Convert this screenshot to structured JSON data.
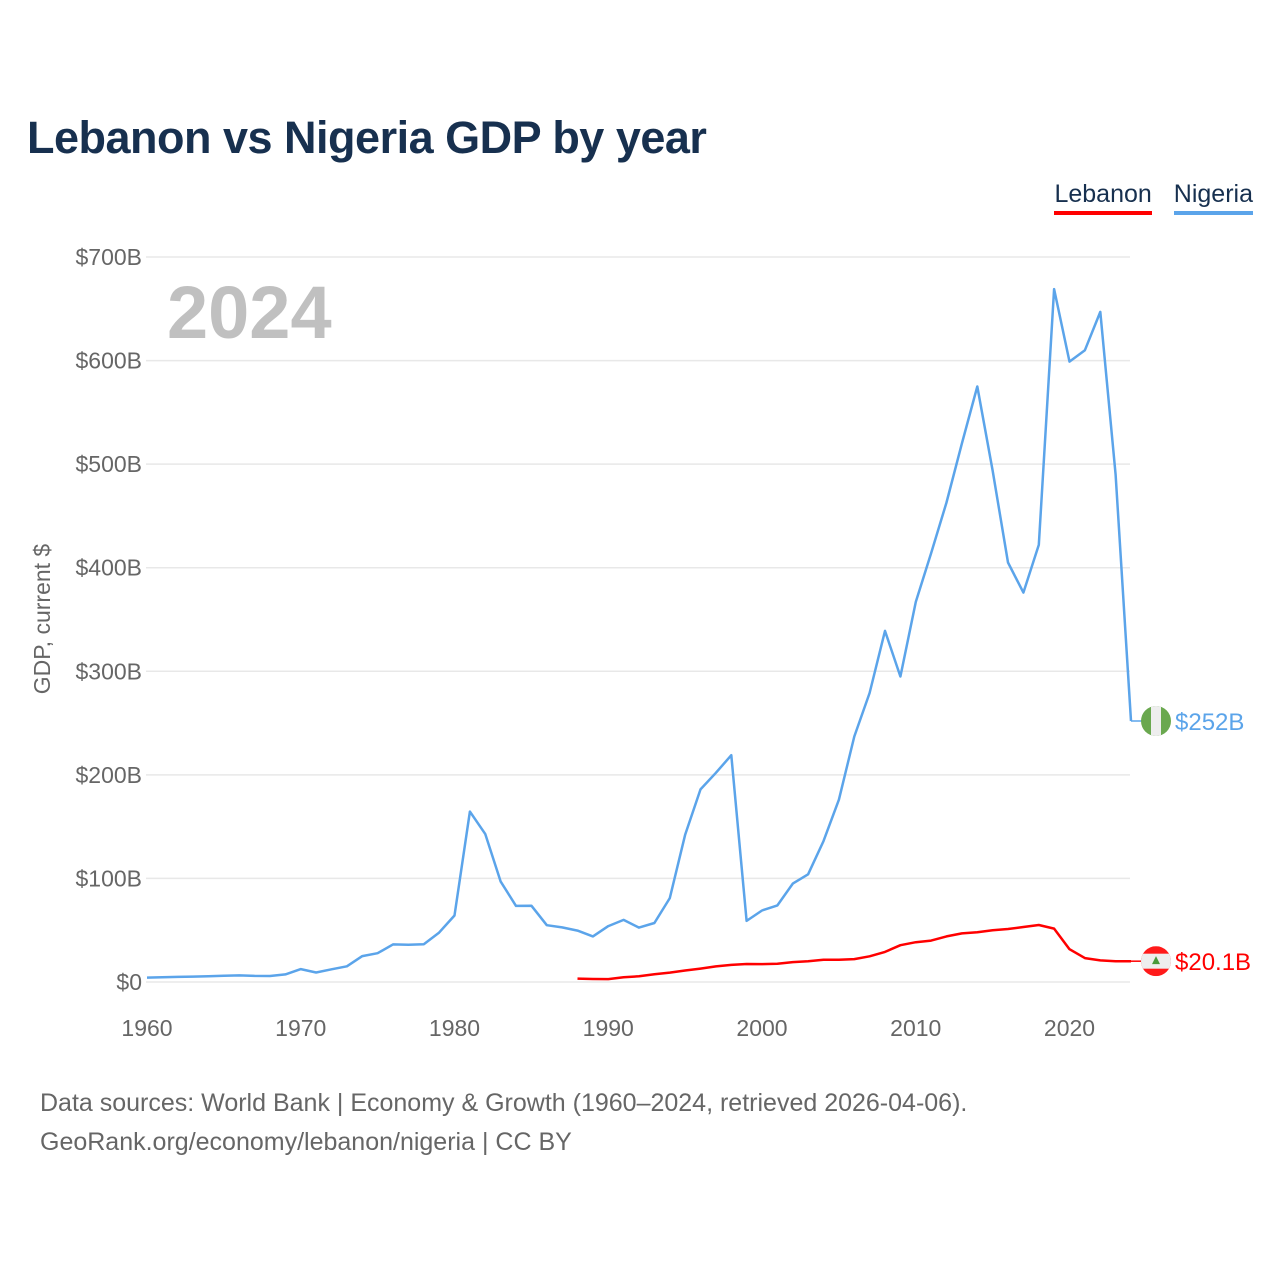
{
  "title": "Lebanon vs Nigeria GDP by year",
  "year_label": "2024",
  "legend": [
    {
      "label": "Lebanon",
      "color": "#ff0000"
    },
    {
      "label": "Nigeria",
      "color": "#5ba4ea"
    }
  ],
  "source_line1": "Data sources: World Bank | Economy & Growth (1960–2024, retrieved 2026-04-06).",
  "source_line2": "GeoRank.org/economy/lebanon/nigeria | CC BY",
  "chart_data": {
    "type": "line",
    "title": "Lebanon vs Nigeria GDP by year",
    "xlabel": "",
    "ylabel": "GDP, current $",
    "xlim": [
      1960,
      2024
    ],
    "ylim": [
      0,
      700
    ],
    "x_ticks": [
      1960,
      1970,
      1980,
      1990,
      2000,
      2010,
      2020
    ],
    "y_ticks": [
      0,
      100,
      200,
      300,
      400,
      500,
      600,
      700
    ],
    "y_tick_labels": [
      "$0",
      "$100B",
      "$200B",
      "$300B",
      "$400B",
      "$500B",
      "$600B",
      "$700B"
    ],
    "grid": true,
    "legend_position": "top-right",
    "series": [
      {
        "name": "Nigeria",
        "color": "#5ba4ea",
        "end_label": "$252B",
        "start_year": 1960,
        "values": [
          4.2,
          4.5,
          4.9,
          5.2,
          5.6,
          6.0,
          6.4,
          5.9,
          5.8,
          7.3,
          12.5,
          9.2,
          12.3,
          15.2,
          25.0,
          27.8,
          36.3,
          36.0,
          36.5,
          47.7,
          64.2,
          164.5,
          142.8,
          97.1,
          73.5,
          73.7,
          54.8,
          52.7,
          49.6,
          44.0,
          54.0,
          60.0,
          52.5,
          57.0,
          81.0,
          142.0,
          186.0,
          202.0,
          219.0,
          59.0,
          69.0,
          74.0,
          95.0,
          104.0,
          136.0,
          176.0,
          237.0,
          279.0,
          339.0,
          295.0,
          367.0,
          414.0,
          463.0,
          520.0,
          575.0,
          494.0,
          405.0,
          376.0,
          422.0,
          669.0,
          599.0,
          610.0,
          647.0,
          490.0,
          252.0
        ]
      },
      {
        "name": "Lebanon",
        "color": "#ff0000",
        "end_label": "$20.1B",
        "start_year": 1988,
        "values": [
          3.3,
          2.9,
          2.8,
          4.5,
          5.5,
          7.5,
          9.1,
          11.1,
          12.9,
          15.1,
          16.5,
          17.4,
          17.3,
          17.6,
          19.2,
          20.1,
          21.5,
          21.5,
          22.1,
          24.8,
          29.1,
          35.5,
          38.4,
          40.0,
          44.0,
          46.9,
          48.1,
          49.9,
          51.2,
          53.1,
          55.0,
          51.6,
          31.7,
          23.1,
          20.9,
          20.1,
          20.1
        ]
      }
    ]
  }
}
